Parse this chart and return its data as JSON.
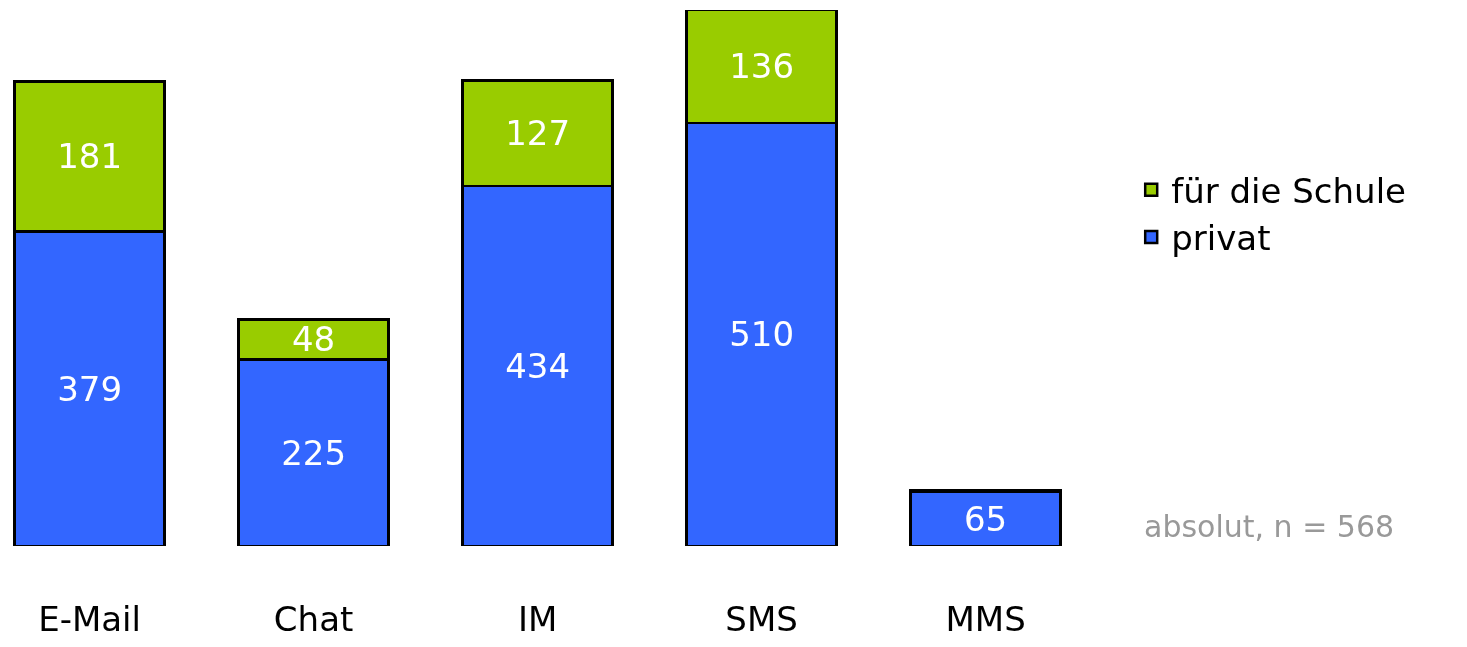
{
  "chart_data": {
    "type": "bar",
    "stacked": true,
    "categories": [
      "E-Mail",
      "Chat",
      "IM",
      "SMS",
      "MMS"
    ],
    "series": [
      {
        "name": "privat",
        "color": "#3366ff",
        "values": [
          379,
          225,
          434,
          510,
          65
        ],
        "value_labels": [
          "379",
          "225",
          "434",
          "510",
          "65"
        ]
      },
      {
        "name": "für die Schule",
        "color": "#99cc00",
        "values": [
          181,
          48,
          127,
          136,
          2
        ],
        "value_labels": [
          "181",
          "48",
          "127",
          "136",
          null
        ]
      }
    ],
    "legend": "right",
    "grid": false,
    "tick_labels": "x",
    "annotations": [
      "absolut, n = 568"
    ]
  }
}
